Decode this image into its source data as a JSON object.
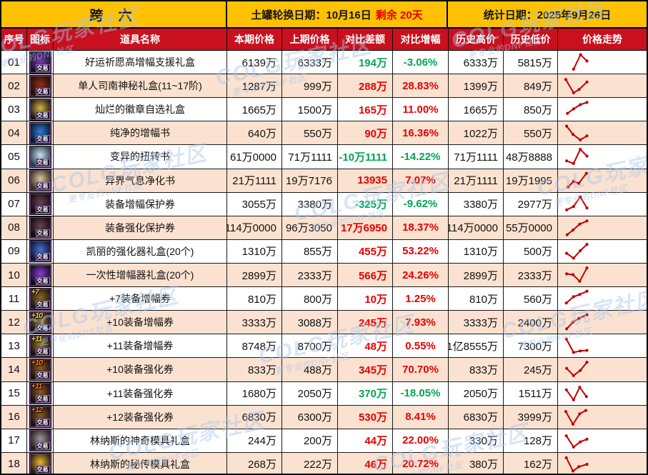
{
  "header": {
    "region_title": "跨 六",
    "rotation_label": "土罐轮换日期：10月16日",
    "rotation_remaining": "剩余 20天",
    "stat_date_label": "统计日期：2025年9月26日"
  },
  "colors": {
    "band_yellow": "#ffc103",
    "header_red": "#c9101e",
    "row_alt": "#fbe2d0",
    "up_red": "#e60000",
    "down_green": "#00a651",
    "trend": "#c00000",
    "watermark": "#a9c7ea"
  },
  "watermark": {
    "big": "COLG玩家社区",
    "small": "更专业的DNF社区"
  },
  "table": {
    "columns": [
      "序号",
      "图标",
      "道具名称",
      "本期价格",
      "上期价格",
      "对比差额",
      "对比增幅",
      "历史高价",
      "历史低价",
      "价格走势"
    ],
    "icon_badge": "交易",
    "rows": [
      {
        "num": "01",
        "name": "好运祈愿高增幅支援礼盒",
        "cur": "6139万",
        "prev": "6333万",
        "diff": "194万",
        "pct": "-3.06%",
        "dir": "down",
        "high": "6333万",
        "low": "5815万",
        "icon": {
          "name": "lucky-wish-amp-gift-box",
          "c1": "#1a0b2e",
          "c2": "#7a3fb0",
          "plus": "",
          "plus_color": ""
        },
        "trend": [
          [
            0.38,
            0.88
          ],
          [
            0.63,
            0.1
          ],
          [
            0.86,
            0.44
          ]
        ]
      },
      {
        "num": "02",
        "name": "单人司南神秘礼盒(11~17阶)",
        "cur": "1287万",
        "prev": "999万",
        "diff": "288万",
        "pct": "28.83%",
        "dir": "up",
        "high": "1399万",
        "low": "849万",
        "icon": {
          "name": "compass-mystery-gift-box",
          "c1": "#260c07",
          "c2": "#8a2e18",
          "plus": "",
          "plus_color": ""
        },
        "trend": [
          [
            0.1,
            0.16
          ],
          [
            0.38,
            0.88
          ],
          [
            0.58,
            0.7
          ],
          [
            0.86,
            0.3
          ]
        ]
      },
      {
        "num": "03",
        "name": "灿烂的徽章自选礼盒",
        "cur": "1665万",
        "prev": "1500万",
        "diff": "165万",
        "pct": "11.00%",
        "dir": "up",
        "high": "1665万",
        "low": "850万",
        "icon": {
          "name": "brilliant-emblem-gift-box",
          "c1": "#1f1608",
          "c2": "#d8b44a",
          "plus": "",
          "plus_color": ""
        },
        "trend": [
          [
            0.16,
            0.72
          ],
          [
            0.38,
            0.48
          ],
          [
            0.62,
            0.25
          ],
          [
            0.86,
            0.13
          ]
        ]
      },
      {
        "num": "04",
        "name": "纯净的增幅书",
        "cur": "640万",
        "prev": "550万",
        "diff": "90万",
        "pct": "16.36%",
        "dir": "up",
        "high": "1022万",
        "low": "550万",
        "icon": {
          "name": "pure-amplification-book",
          "c1": "#06182e",
          "c2": "#2e7bd6",
          "plus": "",
          "plus_color": ""
        },
        "trend": [
          [
            0.13,
            0.14
          ],
          [
            0.36,
            0.58
          ],
          [
            0.62,
            0.88
          ],
          [
            0.86,
            0.66
          ]
        ]
      },
      {
        "num": "05",
        "name": "变异的扭转书",
        "cur": "61万0000",
        "prev": "71万1111",
        "diff": "-10万1111",
        "pct": "-14.22%",
        "dir": "down",
        "high": "71万1111",
        "low": "48万8888",
        "icon": {
          "name": "mutated-twist-book",
          "c1": "#24404e",
          "c2": "#cfe3ea",
          "plus": "",
          "plus_color": ""
        },
        "trend": [
          [
            0.13,
            0.74
          ],
          [
            0.38,
            0.88
          ],
          [
            0.62,
            0.12
          ],
          [
            0.86,
            0.48
          ]
        ]
      },
      {
        "num": "06",
        "name": "异界气息净化书",
        "cur": "21万1111",
        "prev": "19万7176",
        "diff": "13935",
        "pct": "7.07%",
        "dir": "up",
        "high": "21万1111",
        "low": "19万1995",
        "icon": {
          "name": "otherworld-aura-purify-book",
          "c1": "#3a2d1a",
          "c2": "#d8c9a0",
          "plus": "",
          "plus_color": ""
        },
        "trend": [
          [
            0.18,
            0.84
          ],
          [
            0.38,
            0.54
          ],
          [
            0.57,
            0.64
          ],
          [
            0.84,
            0.1
          ]
        ]
      },
      {
        "num": "07",
        "name": "装备增幅保护券",
        "cur": "3055万",
        "prev": "3380万",
        "diff": "-325万",
        "pct": "-9.62%",
        "dir": "down",
        "high": "3380万",
        "low": "2977万",
        "icon": {
          "name": "equipment-amp-protection-ticket",
          "c1": "#17090d",
          "c2": "#6a4254",
          "plus": "",
          "plus_color": ""
        },
        "trend": [
          [
            0.13,
            0.8
          ],
          [
            0.38,
            0.62
          ],
          [
            0.62,
            0.1
          ],
          [
            0.86,
            0.7
          ]
        ]
      },
      {
        "num": "08",
        "name": "装备强化保护券",
        "cur": "114万0000",
        "prev": "96万3050",
        "diff": "17万6950",
        "pct": "18.37%",
        "dir": "up",
        "high": "114万0000",
        "low": "55万0000",
        "icon": {
          "name": "equipment-reinforce-protection-ticket",
          "c1": "#17090d",
          "c2": "#6a4254",
          "plus": "",
          "plus_color": ""
        },
        "trend": [
          [
            0.15,
            0.87
          ],
          [
            0.36,
            0.62
          ],
          [
            0.6,
            0.3
          ],
          [
            0.86,
            0.13
          ]
        ]
      },
      {
        "num": "09",
        "name": "凯丽的强化器礼盒(20个)",
        "cur": "1310万",
        "prev": "855万",
        "diff": "455万",
        "pct": "53.22%",
        "dir": "up",
        "high": "1310万",
        "low": "500万",
        "icon": {
          "name": "kiri-reinforcer-gift-box",
          "c1": "#0a1230",
          "c2": "#4a6fd0",
          "plus": "",
          "plus_color": ""
        },
        "trend": [
          [
            0.13,
            0.6
          ],
          [
            0.38,
            0.86
          ],
          [
            0.62,
            0.46
          ],
          [
            0.86,
            0.12
          ]
        ]
      },
      {
        "num": "10",
        "name": "一次性增幅器礼盒(20个)",
        "cur": "2899万",
        "prev": "2333万",
        "diff": "566万",
        "pct": "24.26%",
        "dir": "up",
        "high": "2899万",
        "low": "2333万",
        "icon": {
          "name": "onetime-amplifier-gift-box",
          "c1": "#140820",
          "c2": "#8a3fd0",
          "plus": "",
          "plus_color": ""
        },
        "trend": [
          [
            0.13,
            0.44
          ],
          [
            0.36,
            0.48
          ],
          [
            0.6,
            0.84
          ],
          [
            0.86,
            0.12
          ]
        ]
      },
      {
        "num": "11",
        "name": "+7装备增幅券",
        "cur": "810万",
        "prev": "800万",
        "diff": "10万",
        "pct": "1.25%",
        "dir": "up",
        "high": "810万",
        "low": "560万",
        "icon": {
          "name": "plus7-amp-ticket",
          "c1": "#1c1410",
          "c2": "#8a6a20",
          "plus": "+7",
          "plus_color": "#ffd24a"
        },
        "trend": [
          [
            0.12,
            0.74
          ],
          [
            0.38,
            0.4
          ],
          [
            0.6,
            0.28
          ],
          [
            0.86,
            0.1
          ]
        ]
      },
      {
        "num": "12",
        "name": "+10装备增幅券",
        "cur": "3333万",
        "prev": "3088万",
        "diff": "245万",
        "pct": "7.93%",
        "dir": "up",
        "high": "3333万",
        "low": "2400万",
        "icon": {
          "name": "plus10-amp-ticket",
          "c1": "#15100c",
          "c2": "#9a7a30",
          "plus": "+10",
          "plus_color": "#ffd24a"
        },
        "trend": [
          [
            0.13,
            0.86
          ],
          [
            0.36,
            0.5
          ],
          [
            0.57,
            0.3
          ],
          [
            0.86,
            0.1
          ]
        ]
      },
      {
        "num": "13",
        "name": "+11装备增幅券",
        "cur": "8748万",
        "prev": "8700万",
        "diff": "48万",
        "pct": "0.55%",
        "dir": "up",
        "high": "1亿8555万",
        "low": "7300万",
        "icon": {
          "name": "plus11-amp-ticket",
          "c1": "#15100c",
          "c2": "#9a7a30",
          "plus": "+11",
          "plus_color": "#ffd24a"
        },
        "trend": [
          [
            0.12,
            0.14
          ],
          [
            0.38,
            0.86
          ],
          [
            0.62,
            0.78
          ],
          [
            0.86,
            0.75
          ]
        ]
      },
      {
        "num": "14",
        "name": "+10装备强化券",
        "cur": "833万",
        "prev": "488万",
        "diff": "345万",
        "pct": "70.70%",
        "dir": "up",
        "high": "833万",
        "low": "245万",
        "icon": {
          "name": "plus10-reinforce-ticket",
          "c1": "#1a0f0a",
          "c2": "#8a5a2a",
          "plus": "+10",
          "plus_color": "#ff7a1a"
        },
        "trend": [
          [
            0.13,
            0.45
          ],
          [
            0.38,
            0.84
          ],
          [
            0.62,
            0.56
          ],
          [
            0.86,
            0.12
          ]
        ]
      },
      {
        "num": "15",
        "name": "+11装备强化券",
        "cur": "1680万",
        "prev": "2050万",
        "diff": "370万",
        "pct": "-18.05%",
        "dir": "down",
        "high": "2050万",
        "low": "1511万",
        "icon": {
          "name": "plus11-reinforce-ticket",
          "c1": "#1a0f0a",
          "c2": "#8a5a2a",
          "plus": "+11",
          "plus_color": "#ff7a1a"
        },
        "trend": [
          [
            0.12,
            0.3
          ],
          [
            0.38,
            0.84
          ],
          [
            0.6,
            0.16
          ],
          [
            0.84,
            0.66
          ]
        ]
      },
      {
        "num": "16",
        "name": "+12装备强化券",
        "cur": "6830万",
        "prev": "6300万",
        "diff": "530万",
        "pct": "8.41%",
        "dir": "up",
        "high": "6830万",
        "low": "3999万",
        "icon": {
          "name": "plus12-reinforce-ticket",
          "c1": "#1a0f0a",
          "c2": "#8a5a2a",
          "plus": "+12",
          "plus_color": "#ff7a1a"
        },
        "trend": [
          [
            0.1,
            0.2
          ],
          [
            0.36,
            0.88
          ],
          [
            0.6,
            0.32
          ],
          [
            0.82,
            0.14
          ]
        ]
      },
      {
        "num": "17",
        "name": "林纳斯的神奇模具礼盒",
        "cur": "244万",
        "prev": "200万",
        "diff": "44万",
        "pct": "22.00%",
        "dir": "up",
        "high": "330万",
        "low": "128万",
        "icon": {
          "name": "linus-magic-mold-gift-box",
          "c1": "#241a12",
          "c2": "#9a9a9a",
          "plus": "",
          "plus_color": ""
        },
        "trend": [
          [
            0.12,
            0.24
          ],
          [
            0.38,
            0.84
          ],
          [
            0.62,
            0.56
          ],
          [
            0.86,
            0.42
          ]
        ]
      },
      {
        "num": "18",
        "name": "林纳斯的秘传模具礼盒",
        "cur": "268万",
        "prev": "222万",
        "diff": "46万",
        "pct": "20.72%",
        "dir": "up",
        "high": "380万",
        "low": "162万",
        "icon": {
          "name": "linus-secret-mold-gift-box",
          "c1": "#2a1a06",
          "c2": "#e8b83a",
          "plus": "",
          "plus_color": ""
        },
        "trend": [
          [
            0.12,
            0.15
          ],
          [
            0.36,
            0.86
          ],
          [
            0.57,
            0.63
          ],
          [
            0.86,
            0.5
          ]
        ]
      }
    ]
  }
}
